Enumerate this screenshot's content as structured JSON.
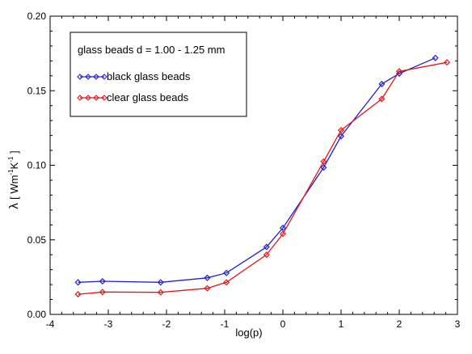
{
  "chart_data": {
    "type": "line",
    "xlabel": "log(p)",
    "ylabel": "λ [ Wm-1K-1 ]",
    "ylabel_parts": {
      "symbol": "λ",
      "open": "[ Wm",
      "sup1": "-1",
      "mid": "K",
      "sup2": "-1",
      "close": " ]"
    },
    "xlim": [
      -4,
      3
    ],
    "ylim": [
      0.0,
      0.2
    ],
    "x_ticks": [
      -4,
      -3,
      -2,
      -1,
      0,
      1,
      2,
      3
    ],
    "x_tick_labels": [
      "-4",
      "-3",
      "-2",
      "-1",
      "0",
      "1",
      "2",
      "3"
    ],
    "y_ticks": [
      0.0,
      0.05,
      0.1,
      0.15,
      0.2
    ],
    "y_tick_labels": [
      "0.00",
      "0.05",
      "0.10",
      "0.15",
      "0.20"
    ],
    "grid": false,
    "legend_title": "glass beads d = 1.00 - 1.25 mm",
    "legend_position": "top-left",
    "series": [
      {
        "name": "black glass beads",
        "color": "#2020d0",
        "marker": "diamond",
        "points": [
          [
            -3.52,
            0.0215
          ],
          [
            -3.1,
            0.0222
          ],
          [
            -2.1,
            0.0215
          ],
          [
            -1.3,
            0.0245
          ],
          [
            -0.97,
            0.0278
          ],
          [
            -0.28,
            0.0452
          ],
          [
            0.0,
            0.058
          ],
          [
            0.7,
            0.0985
          ],
          [
            1.0,
            0.1195
          ],
          [
            1.7,
            0.1545
          ],
          [
            2.0,
            0.1615
          ],
          [
            2.62,
            0.172
          ]
        ]
      },
      {
        "name": "clear glass beads",
        "color": "#e01818",
        "marker": "diamond",
        "points": [
          [
            -3.52,
            0.0135
          ],
          [
            -3.1,
            0.015
          ],
          [
            -2.1,
            0.0148
          ],
          [
            -1.3,
            0.0175
          ],
          [
            -0.97,
            0.0215
          ],
          [
            -0.28,
            0.04
          ],
          [
            0.0,
            0.054
          ],
          [
            0.7,
            0.1025
          ],
          [
            1.0,
            0.1235
          ],
          [
            1.7,
            0.1445
          ],
          [
            2.0,
            0.163
          ],
          [
            2.82,
            0.169
          ]
        ]
      }
    ]
  }
}
